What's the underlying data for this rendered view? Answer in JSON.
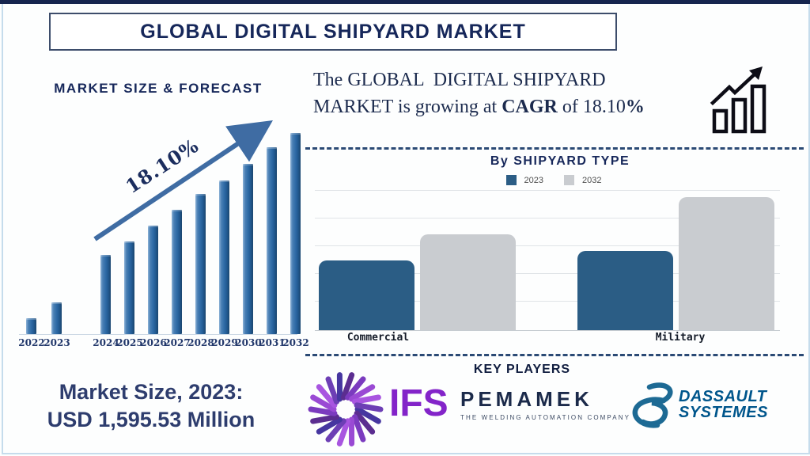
{
  "page": {
    "title": "GLOBAL DIGITAL SHIPYARD MARKET"
  },
  "colors": {
    "navy_text": "#16275a",
    "forecast_bar_blue": "#2f6ba6",
    "type_bar_blue": "#2b5d85",
    "type_bar_gray": "#c9ccd0",
    "arrow_blue": "#3f6ca3",
    "frame_light_blue": "#c5dcec",
    "ifs_purple": "#8324c9",
    "dassault_blue": "#00568c"
  },
  "forecast": {
    "heading": "MARKET SIZE & FORECAST",
    "growth_label": "18.10%"
  },
  "headline": {
    "part1": "The GLOBAL  DIGITAL SHIPYARD MARKET is growing at ",
    "bold1": "CAGR",
    "part2": " of 18.10",
    "bold2": "%"
  },
  "shipyard_type": {
    "heading": "By SHIPYARD TYPE",
    "categories": [
      "Commercial",
      "Military"
    ]
  },
  "market_size": {
    "line1": "Market Size, 2023:",
    "line2": "USD 1,595.53 Million"
  },
  "key_players": {
    "heading": "KEY PLAYERS",
    "ifs_label": "IFS",
    "pemamek_label": "PEMAMEK",
    "pemamek_tagline": "THE WELDING AUTOMATION COMPANY",
    "dassault_line1": "DASSAULT",
    "dassault_line2": "SYSTEMES"
  },
  "chart_data": [
    {
      "id": "market-size-forecast",
      "type": "bar",
      "title": "MARKET SIZE & FORECAST",
      "categories": [
        "2022",
        "2023",
        "2024",
        "2025",
        "2026",
        "2027",
        "2028",
        "2029",
        "2030",
        "2031",
        "2032"
      ],
      "values": [
        20,
        40,
        100,
        117,
        137,
        157,
        177,
        194,
        215,
        236,
        254
      ],
      "units": "relative bar heights in px (no numeric axis shown)",
      "x_offsets": [
        13,
        45,
        107,
        137,
        167,
        197,
        227,
        257,
        287,
        317,
        347
      ],
      "annotation": "18.10% CAGR trend arrow",
      "bar_color": "#2f6ba6",
      "grid": false,
      "note": "gap between 2023 and 2024 groups; 2032 label clipped at right edge"
    },
    {
      "id": "by-shipyard-type",
      "type": "bar",
      "title": "By SHIPYARD TYPE",
      "categories": [
        "Commercial",
        "Military"
      ],
      "series": [
        {
          "name": "2023",
          "values": [
            88,
            100
          ],
          "color": "#2b5d85"
        },
        {
          "name": "2032",
          "values": [
            121,
            168
          ],
          "color": "#c9ccd0"
        }
      ],
      "units": "relative bar heights in px (no numeric axis shown)",
      "legend_position": "top",
      "grid": true
    }
  ]
}
